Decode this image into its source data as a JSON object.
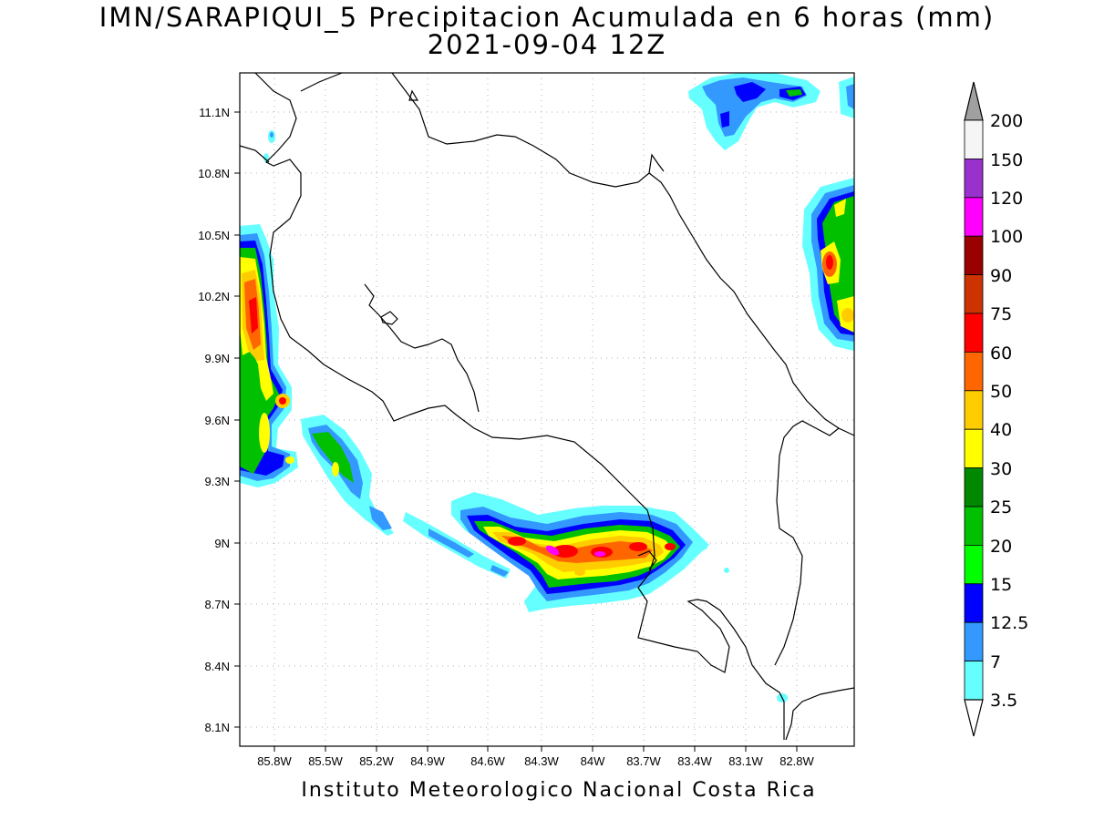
{
  "title": {
    "line1": "IMN/SARAPIQUI_5 Precipitacion Acumulada en 6 horas (mm)",
    "line2": "2021-09-04 12Z"
  },
  "footer": "Instituto Meteorologico Nacional Costa Rica",
  "map": {
    "lat_labels": [
      "11.1N",
      "10.8N",
      "10.5N",
      "10.2N",
      "9.9N",
      "9.6N",
      "9.3N",
      "9N",
      "8.7N",
      "8.4N",
      "8.1N"
    ],
    "lon_labels": [
      "85.8W",
      "85.5W",
      "85.2W",
      "84.9W",
      "84.6W",
      "84.3W",
      "84W",
      "83.7W",
      "83.4W",
      "83.1W",
      "82.8W"
    ],
    "grid": true
  },
  "colorbar": {
    "labels": [
      "200",
      "150",
      "120",
      "100",
      "90",
      "75",
      "60",
      "50",
      "40",
      "30",
      "25",
      "20",
      "15",
      "12.5",
      "7",
      "3.5"
    ],
    "colors": [
      "#f5f5f5",
      "#9932cc",
      "#ff00ff",
      "#990000",
      "#cc3300",
      "#ff0000",
      "#ff6600",
      "#ffcc00",
      "#ffff00",
      "#008800",
      "#00c000",
      "#00ff00",
      "#0000ff",
      "#3399ff",
      "#66ffff"
    ],
    "top_triangle_color": "#a0a0a0",
    "bottom_triangle_color": "#ffffff"
  }
}
